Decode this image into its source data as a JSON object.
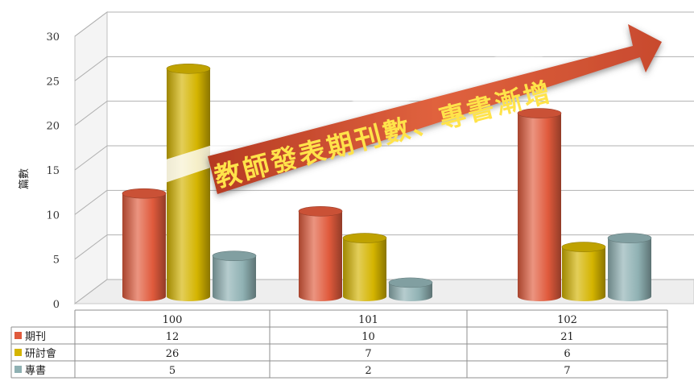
{
  "chart_data": {
    "type": "bar",
    "style": "3d-cylinder",
    "categories": [
      "100",
      "101",
      "102"
    ],
    "series": [
      {
        "name": "期刊",
        "values": [
          12,
          10,
          21
        ],
        "color": "#e05a3c"
      },
      {
        "name": "研討會",
        "values": [
          26,
          7,
          6
        ],
        "color": "#d4b400"
      },
      {
        "name": "專書",
        "values": [
          5,
          2,
          7
        ],
        "color": "#8fb1b3"
      }
    ],
    "ylabel": "篇數",
    "ylim": [
      0,
      30
    ],
    "yticks": [
      0,
      5,
      10,
      15,
      20,
      25,
      30
    ],
    "grid": true,
    "legend": "data-table-below",
    "annotation": "教師發表期刊數、專書漸增"
  }
}
